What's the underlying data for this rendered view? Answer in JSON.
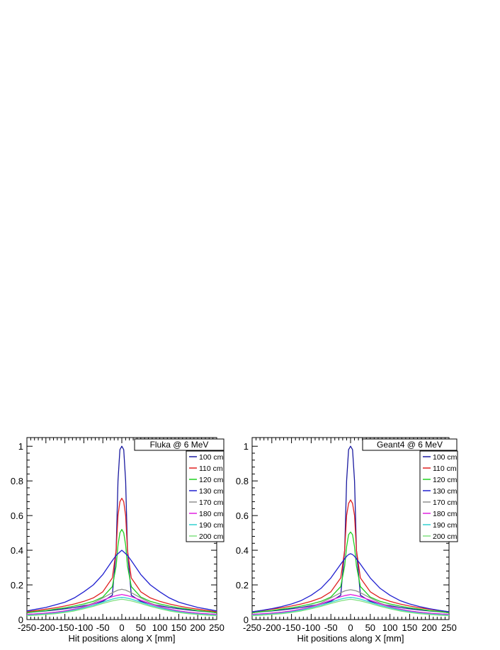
{
  "chart_data": [
    {
      "type": "line",
      "title": "Fluka @ 6 MeV",
      "xlabel": "Hit positions along X [mm]",
      "ylabel": "",
      "xlim": [
        -250,
        250
      ],
      "ylim": [
        0,
        1.05
      ],
      "x_ticks": [
        "-250",
        "-200",
        "-150",
        "-100",
        "-50",
        "0",
        "50",
        "100",
        "150",
        "200",
        "250"
      ],
      "y_ticks": [
        "0",
        "0.2",
        "0.4",
        "0.6",
        "0.8",
        "1"
      ],
      "legend_position": "top-right",
      "x": [
        -250,
        -225,
        -200,
        -175,
        -150,
        -125,
        -100,
        -75,
        -50,
        -25,
        -15,
        -10,
        -5,
        0,
        5,
        10,
        15,
        25,
        50,
        75,
        100,
        125,
        150,
        175,
        200,
        225,
        250
      ],
      "series": [
        {
          "name": "100 cm",
          "color": "#1a1aa0",
          "values": [
            0.04,
            0.045,
            0.05,
            0.055,
            0.062,
            0.07,
            0.08,
            0.09,
            0.105,
            0.14,
            0.4,
            0.8,
            0.98,
            1.0,
            0.98,
            0.8,
            0.4,
            0.14,
            0.105,
            0.09,
            0.08,
            0.07,
            0.062,
            0.055,
            0.05,
            0.045,
            0.04
          ]
        },
        {
          "name": "110 cm",
          "color": "#e02020",
          "values": [
            0.045,
            0.052,
            0.06,
            0.068,
            0.078,
            0.09,
            0.105,
            0.125,
            0.16,
            0.24,
            0.4,
            0.6,
            0.68,
            0.7,
            0.68,
            0.6,
            0.4,
            0.24,
            0.16,
            0.125,
            0.105,
            0.09,
            0.078,
            0.068,
            0.06,
            0.052,
            0.045
          ]
        },
        {
          "name": "120 cm",
          "color": "#20d020",
          "values": [
            0.04,
            0.046,
            0.052,
            0.06,
            0.068,
            0.078,
            0.09,
            0.105,
            0.13,
            0.19,
            0.31,
            0.43,
            0.5,
            0.52,
            0.5,
            0.43,
            0.31,
            0.19,
            0.13,
            0.105,
            0.09,
            0.078,
            0.068,
            0.06,
            0.052,
            0.046,
            0.04
          ]
        },
        {
          "name": "130 cm",
          "color": "#2020d0",
          "values": [
            0.05,
            0.06,
            0.07,
            0.085,
            0.1,
            0.125,
            0.16,
            0.2,
            0.26,
            0.34,
            0.37,
            0.38,
            0.39,
            0.4,
            0.39,
            0.38,
            0.37,
            0.34,
            0.26,
            0.2,
            0.16,
            0.125,
            0.1,
            0.085,
            0.07,
            0.06,
            0.05
          ]
        },
        {
          "name": "170 cm",
          "color": "#909090",
          "values": [
            0.03,
            0.033,
            0.037,
            0.042,
            0.05,
            0.06,
            0.075,
            0.095,
            0.125,
            0.155,
            0.165,
            0.17,
            0.172,
            0.175,
            0.172,
            0.17,
            0.165,
            0.155,
            0.125,
            0.095,
            0.075,
            0.06,
            0.05,
            0.042,
            0.037,
            0.033,
            0.03
          ]
        },
        {
          "name": "180 cm",
          "color": "#e020e0",
          "values": [
            0.03,
            0.033,
            0.037,
            0.042,
            0.05,
            0.06,
            0.073,
            0.09,
            0.112,
            0.132,
            0.138,
            0.14,
            0.142,
            0.145,
            0.142,
            0.14,
            0.138,
            0.132,
            0.112,
            0.09,
            0.073,
            0.06,
            0.05,
            0.042,
            0.037,
            0.033,
            0.03
          ]
        },
        {
          "name": "190 cm",
          "color": "#30d0d0",
          "values": [
            0.025,
            0.028,
            0.032,
            0.037,
            0.045,
            0.055,
            0.068,
            0.082,
            0.1,
            0.118,
            0.123,
            0.125,
            0.127,
            0.128,
            0.127,
            0.125,
            0.123,
            0.118,
            0.1,
            0.082,
            0.068,
            0.055,
            0.045,
            0.037,
            0.032,
            0.028,
            0.025
          ]
        },
        {
          "name": "200 cm",
          "color": "#80e080",
          "values": [
            0.022,
            0.025,
            0.029,
            0.034,
            0.041,
            0.05,
            0.062,
            0.076,
            0.093,
            0.108,
            0.112,
            0.114,
            0.116,
            0.117,
            0.116,
            0.114,
            0.112,
            0.108,
            0.093,
            0.076,
            0.062,
            0.05,
            0.041,
            0.034,
            0.029,
            0.025,
            0.022
          ]
        }
      ]
    },
    {
      "type": "line",
      "title": "Geant4 @ 6 MeV",
      "xlabel": "Hit positions along X [mm]",
      "ylabel": "",
      "xlim": [
        -250,
        250
      ],
      "ylim": [
        0,
        1.05
      ],
      "x_ticks": [
        "-250",
        "-200",
        "-150",
        "-100",
        "-50",
        "0",
        "50",
        "100",
        "150",
        "200",
        "250"
      ],
      "y_ticks": [
        "0",
        "0.2",
        "0.4",
        "0.6",
        "0.8",
        "1"
      ],
      "legend_position": "top-right",
      "x": [
        -250,
        -225,
        -200,
        -175,
        -150,
        -125,
        -100,
        -75,
        -50,
        -25,
        -15,
        -10,
        -5,
        0,
        5,
        10,
        15,
        25,
        50,
        75,
        100,
        125,
        150,
        175,
        200,
        225,
        250
      ],
      "series": [
        {
          "name": "100 cm",
          "color": "#1a1aa0",
          "values": [
            0.04,
            0.045,
            0.05,
            0.055,
            0.062,
            0.07,
            0.08,
            0.09,
            0.105,
            0.14,
            0.4,
            0.8,
            0.98,
            1.0,
            0.98,
            0.8,
            0.4,
            0.14,
            0.105,
            0.09,
            0.08,
            0.07,
            0.062,
            0.055,
            0.05,
            0.045,
            0.04
          ]
        },
        {
          "name": "110 cm",
          "color": "#e02020",
          "values": [
            0.045,
            0.052,
            0.06,
            0.068,
            0.078,
            0.09,
            0.105,
            0.125,
            0.16,
            0.24,
            0.4,
            0.6,
            0.67,
            0.69,
            0.67,
            0.6,
            0.4,
            0.24,
            0.16,
            0.125,
            0.105,
            0.09,
            0.078,
            0.068,
            0.06,
            0.052,
            0.045
          ]
        },
        {
          "name": "120 cm",
          "color": "#20d020",
          "values": [
            0.04,
            0.046,
            0.052,
            0.06,
            0.068,
            0.078,
            0.09,
            0.105,
            0.13,
            0.19,
            0.31,
            0.42,
            0.49,
            0.505,
            0.49,
            0.42,
            0.31,
            0.19,
            0.13,
            0.105,
            0.09,
            0.078,
            0.068,
            0.06,
            0.052,
            0.046,
            0.04
          ]
        },
        {
          "name": "130 cm",
          "color": "#2020d0",
          "values": [
            0.045,
            0.053,
            0.063,
            0.075,
            0.09,
            0.11,
            0.14,
            0.18,
            0.24,
            0.32,
            0.35,
            0.365,
            0.375,
            0.38,
            0.375,
            0.365,
            0.35,
            0.32,
            0.24,
            0.18,
            0.14,
            0.11,
            0.09,
            0.075,
            0.063,
            0.053,
            0.045
          ]
        },
        {
          "name": "170 cm",
          "color": "#909090",
          "values": [
            0.03,
            0.033,
            0.037,
            0.042,
            0.05,
            0.06,
            0.075,
            0.095,
            0.125,
            0.155,
            0.165,
            0.168,
            0.17,
            0.172,
            0.17,
            0.168,
            0.165,
            0.155,
            0.125,
            0.095,
            0.075,
            0.06,
            0.05,
            0.042,
            0.037,
            0.033,
            0.03
          ]
        },
        {
          "name": "180 cm",
          "color": "#e020e0",
          "values": [
            0.03,
            0.033,
            0.037,
            0.042,
            0.05,
            0.06,
            0.073,
            0.09,
            0.112,
            0.132,
            0.138,
            0.14,
            0.142,
            0.145,
            0.142,
            0.14,
            0.138,
            0.132,
            0.112,
            0.09,
            0.073,
            0.06,
            0.05,
            0.042,
            0.037,
            0.033,
            0.03
          ]
        },
        {
          "name": "190 cm",
          "color": "#30d0d0",
          "values": [
            0.025,
            0.028,
            0.032,
            0.037,
            0.045,
            0.055,
            0.068,
            0.082,
            0.1,
            0.118,
            0.123,
            0.125,
            0.127,
            0.128,
            0.127,
            0.125,
            0.123,
            0.118,
            0.1,
            0.082,
            0.068,
            0.055,
            0.045,
            0.037,
            0.032,
            0.028,
            0.025
          ]
        },
        {
          "name": "200 cm",
          "color": "#80e080",
          "values": [
            0.022,
            0.025,
            0.029,
            0.034,
            0.041,
            0.05,
            0.062,
            0.076,
            0.093,
            0.108,
            0.112,
            0.114,
            0.116,
            0.117,
            0.116,
            0.114,
            0.112,
            0.108,
            0.093,
            0.076,
            0.062,
            0.05,
            0.041,
            0.034,
            0.029,
            0.025,
            0.022
          ]
        }
      ]
    }
  ]
}
